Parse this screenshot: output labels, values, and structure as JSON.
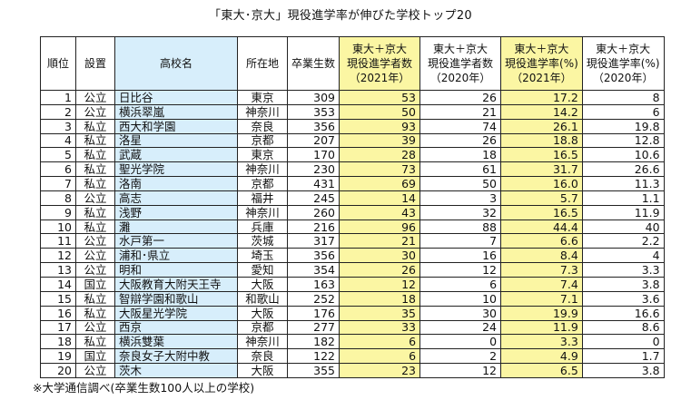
{
  "title": "「東大･京大」現役進学率が伸びた学校トップ20",
  "headers": {
    "rank": "順位",
    "type": "設置",
    "name": "高校名",
    "pref": "所在地",
    "grads": "卒業生数",
    "c2021_l1": "東大＋京大",
    "c2021_l2": "現役進学者数",
    "c2021_l3": "（2021年）",
    "c2020_l1": "東大＋京大",
    "c2020_l2": "現役進学者数",
    "c2020_l3": "（2020年）",
    "r2021_l1": "東大＋京大",
    "r2021_l2": "現役進学率(%)",
    "r2021_l3": "（2021年）",
    "r2020_l1": "東大＋京大",
    "r2020_l2": "現役進学率(%)",
    "r2020_l3": "（2020年）"
  },
  "rows": [
    [
      "1",
      "公立",
      "日比谷",
      "東京",
      "309",
      "53",
      "26",
      "17.2",
      "8"
    ],
    [
      "2",
      "公立",
      "横浜翠嵐",
      "神奈川",
      "353",
      "50",
      "21",
      "14.2",
      "6"
    ],
    [
      "3",
      "私立",
      "西大和学園",
      "奈良",
      "356",
      "93",
      "74",
      "26.1",
      "19.8"
    ],
    [
      "4",
      "私立",
      "洛星",
      "京都",
      "207",
      "39",
      "26",
      "18.8",
      "12.8"
    ],
    [
      "5",
      "私立",
      "武蔵",
      "東京",
      "170",
      "28",
      "18",
      "16.5",
      "10.6"
    ],
    [
      "6",
      "私立",
      "聖光学院",
      "神奈川",
      "230",
      "73",
      "61",
      "31.7",
      "26.6"
    ],
    [
      "7",
      "私立",
      "洛南",
      "京都",
      "431",
      "69",
      "50",
      "16.0",
      "11.3"
    ],
    [
      "8",
      "公立",
      "高志",
      "福井",
      "245",
      "14",
      "3",
      "5.7",
      "1.1"
    ],
    [
      "9",
      "私立",
      "浅野",
      "神奈川",
      "260",
      "43",
      "32",
      "16.5",
      "11.9"
    ],
    [
      "10",
      "私立",
      "灘",
      "兵庫",
      "216",
      "96",
      "88",
      "44.4",
      "40"
    ],
    [
      "11",
      "公立",
      "水戸第一",
      "茨城",
      "317",
      "21",
      "7",
      "6.6",
      "2.2"
    ],
    [
      "12",
      "公立",
      "浦和･県立",
      "埼玉",
      "356",
      "30",
      "16",
      "8.4",
      "4"
    ],
    [
      "13",
      "公立",
      "明和",
      "愛知",
      "354",
      "26",
      "12",
      "7.3",
      "3.3"
    ],
    [
      "14",
      "国立",
      "大阪教育大附天王寺",
      "大阪",
      "163",
      "12",
      "6",
      "7.4",
      "3.8"
    ],
    [
      "15",
      "私立",
      "智辯学園和歌山",
      "和歌山",
      "252",
      "18",
      "10",
      "7.1",
      "3.6"
    ],
    [
      "16",
      "私立",
      "大阪星光学院",
      "大阪",
      "176",
      "35",
      "30",
      "19.9",
      "16.6"
    ],
    [
      "17",
      "公立",
      "西京",
      "京都",
      "277",
      "33",
      "24",
      "11.9",
      "8.6"
    ],
    [
      "18",
      "私立",
      "横浜雙葉",
      "神奈川",
      "182",
      "6",
      "0",
      "3.3",
      "0"
    ],
    [
      "19",
      "国立",
      "奈良女子大附中教",
      "奈良",
      "122",
      "6",
      "2",
      "4.9",
      "1.7"
    ],
    [
      "20",
      "公立",
      "茨木",
      "大阪",
      "355",
      "23",
      "12",
      "6.5",
      "3.8"
    ]
  ],
  "footnote": "※大学通信調べ(卒業生数100人以上の学校)",
  "colors": {
    "name_column": "#d7eefb",
    "highlight_columns": "#fbf6a3",
    "border": "#222222"
  }
}
